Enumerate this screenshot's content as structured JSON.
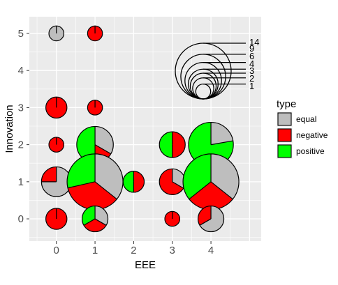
{
  "chart_data": {
    "type": "scatter",
    "subtype": "pie-scatter (bubble pies)",
    "xlabel": "EEE",
    "ylabel": "Innovation",
    "x_ticks": [
      "0",
      "1",
      "2",
      "3",
      "4"
    ],
    "y_ticks": [
      "0",
      "1",
      "2",
      "3",
      "4",
      "5"
    ],
    "xlim": [
      -0.7,
      5.3
    ],
    "ylim": [
      -0.6,
      5.45
    ],
    "grid": true,
    "legend_placement": "right",
    "legend": {
      "title": "type",
      "entries": [
        {
          "label": "equal",
          "color": "#BEBEBE"
        },
        {
          "label": "negative",
          "color": "#FF0000"
        },
        {
          "label": "positive",
          "color": "#00FF00"
        }
      ]
    },
    "size_legend": {
      "values": [
        "14",
        "9",
        "6",
        "4",
        "3",
        "2",
        "1"
      ]
    },
    "points": [
      {
        "x": 0,
        "y": 5,
        "total": 1,
        "equal": 1,
        "negative": 0,
        "positive": 0
      },
      {
        "x": 1,
        "y": 5,
        "total": 1,
        "equal": 0,
        "negative": 1,
        "positive": 0
      },
      {
        "x": 0,
        "y": 3,
        "total": 2,
        "equal": 0,
        "negative": 2,
        "positive": 0
      },
      {
        "x": 1,
        "y": 3,
        "total": 1,
        "equal": 0,
        "negative": 1,
        "positive": 0
      },
      {
        "x": 0,
        "y": 2,
        "total": 1,
        "equal": 0,
        "negative": 1,
        "positive": 0
      },
      {
        "x": 1,
        "y": 2,
        "total": 6,
        "equal": 2,
        "negative": 1,
        "positive": 3
      },
      {
        "x": 3,
        "y": 2,
        "total": 3,
        "equal": 0,
        "negative": 1.5,
        "positive": 1.5
      },
      {
        "x": 4,
        "y": 2,
        "total": 9,
        "equal": 2,
        "negative": 0,
        "positive": 7
      },
      {
        "x": 0,
        "y": 1,
        "total": 4,
        "equal": 3,
        "negative": 1,
        "positive": 0
      },
      {
        "x": 1,
        "y": 1,
        "total": 14,
        "equal": 5,
        "negative": 5,
        "positive": 4
      },
      {
        "x": 2,
        "y": 1,
        "total": 2,
        "equal": 0,
        "negative": 1,
        "positive": 1
      },
      {
        "x": 3,
        "y": 1,
        "total": 3,
        "equal": 1,
        "negative": 2,
        "positive": 0
      },
      {
        "x": 4,
        "y": 1,
        "total": 14,
        "equal": 5,
        "negative": 4,
        "positive": 5
      },
      {
        "x": 0,
        "y": 0,
        "total": 2,
        "equal": 0,
        "negative": 2,
        "positive": 0
      },
      {
        "x": 1,
        "y": 0,
        "total": 3,
        "equal": 1,
        "negative": 1,
        "positive": 1
      },
      {
        "x": 3,
        "y": 0,
        "total": 1,
        "equal": 0,
        "negative": 1,
        "positive": 0
      },
      {
        "x": 4,
        "y": 0,
        "total": 3,
        "equal": 2,
        "negative": 1,
        "positive": 0
      }
    ]
  },
  "colors": {
    "equal": "#BEBEBE",
    "negative": "#FF0000",
    "positive": "#00FF00",
    "panel_background": "#EBEBEB",
    "grid_major": "#FFFFFF",
    "outline": "#000000"
  }
}
